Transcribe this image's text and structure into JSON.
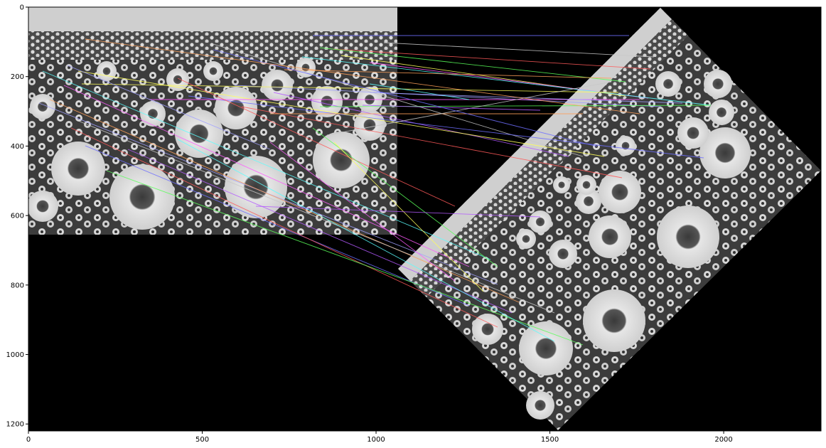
{
  "figure": {
    "description_type": "matplotlib keypoint matches between sunflower field image and rotated copy",
    "x_axis": {
      "range": [
        0,
        2280
      ],
      "ticks": [
        {
          "value": 0,
          "label": "0"
        },
        {
          "value": 500,
          "label": "500"
        },
        {
          "value": 1000,
          "label": "1000"
        },
        {
          "value": 1500,
          "label": "1500"
        },
        {
          "value": 2000,
          "label": "2000"
        }
      ]
    },
    "y_axis": {
      "range": [
        0,
        1220
      ],
      "inverted": true,
      "ticks": [
        {
          "value": 0,
          "label": "0"
        },
        {
          "value": 200,
          "label": "200"
        },
        {
          "value": 400,
          "label": "400"
        },
        {
          "value": 600,
          "label": "600"
        },
        {
          "value": 800,
          "label": "800"
        },
        {
          "value": 1000,
          "label": "1000"
        },
        {
          "value": 1200,
          "label": "1200"
        }
      ]
    },
    "colors": {
      "background": "#000000",
      "left_image_tint": "#8a8a8a",
      "rotated_image_tint": "#7a7a7a",
      "match_colors": [
        "#6f6fff",
        "#ff5a5a",
        "#5aff5a",
        "#ffff5a",
        "#ff5aff",
        "#5affff",
        "#a0a0ff",
        "#ffa05a",
        "#c8c8c8",
        "#b45aff"
      ]
    }
  }
}
